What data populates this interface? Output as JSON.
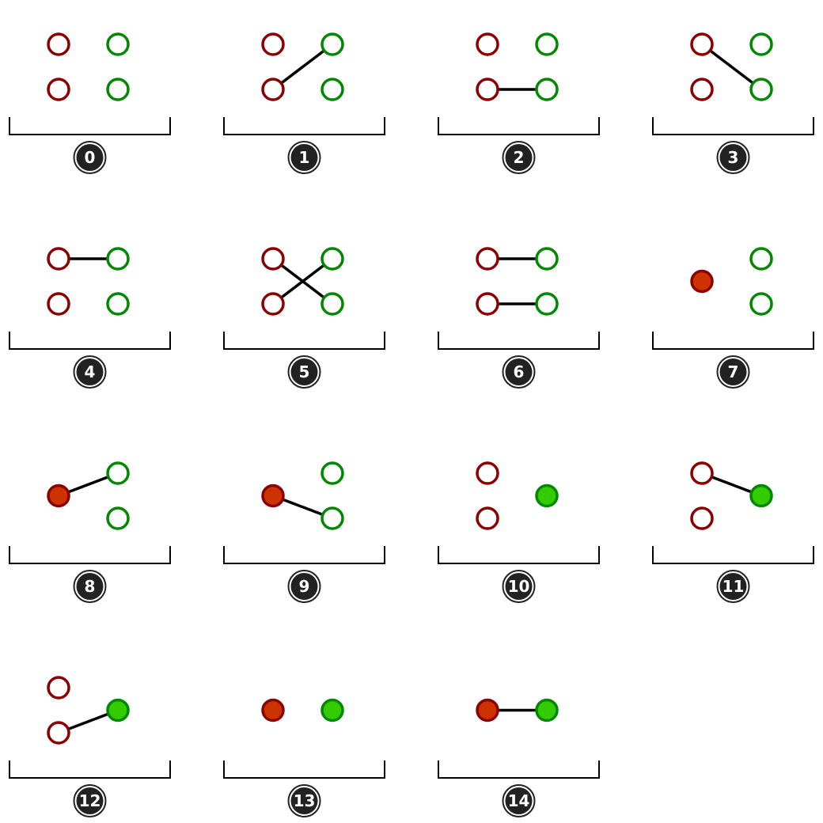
{
  "colors": {
    "red_stroke": "#8b0000",
    "red_fill": "#cc3300",
    "green_stroke": "#008800",
    "green_fill": "#33cc00",
    "edge": "#000000",
    "bracket": "#000000",
    "badge_fill": "#222222",
    "badge_text": "#ffffff"
  },
  "diagrams": [
    {
      "label": "0",
      "red": "pair",
      "green": "pair",
      "edges": []
    },
    {
      "label": "1",
      "red": "pair",
      "green": "pair",
      "edges": [
        [
          "r1",
          "g0"
        ]
      ]
    },
    {
      "label": "2",
      "red": "pair",
      "green": "pair",
      "edges": [
        [
          "r1",
          "g1"
        ]
      ]
    },
    {
      "label": "3",
      "red": "pair",
      "green": "pair",
      "edges": [
        [
          "r0",
          "g1"
        ]
      ]
    },
    {
      "label": "4",
      "red": "pair",
      "green": "pair",
      "edges": [
        [
          "r0",
          "g0"
        ]
      ]
    },
    {
      "label": "5",
      "red": "pair",
      "green": "pair",
      "edges": [
        [
          "r0",
          "g1"
        ],
        [
          "r1",
          "g0"
        ]
      ]
    },
    {
      "label": "6",
      "red": "pair",
      "green": "pair",
      "edges": [
        [
          "r0",
          "g0"
        ],
        [
          "r1",
          "g1"
        ]
      ]
    },
    {
      "label": "7",
      "red": "merged",
      "green": "pair",
      "edges": []
    },
    {
      "label": "8",
      "red": "merged",
      "green": "pair",
      "edges": [
        [
          "r",
          "g0"
        ]
      ]
    },
    {
      "label": "9",
      "red": "merged",
      "green": "pair",
      "edges": [
        [
          "r",
          "g1"
        ]
      ]
    },
    {
      "label": "10",
      "red": "pair",
      "green": "merged",
      "edges": []
    },
    {
      "label": "11",
      "red": "pair",
      "green": "merged",
      "edges": [
        [
          "r0",
          "g"
        ]
      ]
    },
    {
      "label": "12",
      "red": "pair",
      "green": "merged",
      "edges": [
        [
          "r1",
          "g"
        ]
      ]
    },
    {
      "label": "13",
      "red": "merged",
      "green": "merged",
      "edges": []
    },
    {
      "label": "14",
      "red": "merged",
      "green": "merged",
      "edges": [
        [
          "r",
          "g"
        ]
      ]
    }
  ]
}
